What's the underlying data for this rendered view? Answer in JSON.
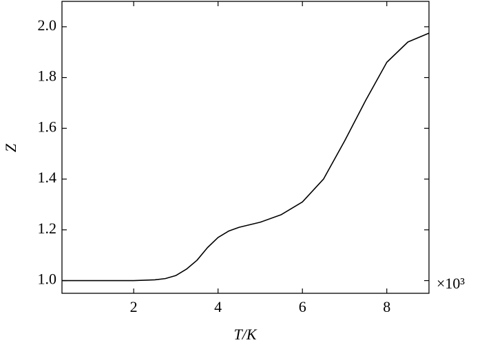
{
  "chart_data": {
    "type": "line",
    "x_label": "T/K",
    "y_label": "Z",
    "x_offset_label": "×10³",
    "x": [
      0.3,
      1,
      2,
      2.5,
      2.75,
      3,
      3.25,
      3.5,
      3.75,
      4,
      4.25,
      4.5,
      5,
      5.5,
      6,
      6.5,
      7,
      7.5,
      8,
      8.5,
      9
    ],
    "series": [
      {
        "color": "#000000",
        "values": [
          1.0,
          1.0,
          1.0,
          1.003,
          1.008,
          1.02,
          1.045,
          1.08,
          1.13,
          1.17,
          1.195,
          1.21,
          1.23,
          1.26,
          1.31,
          1.4,
          1.55,
          1.71,
          1.86,
          1.94,
          1.975
        ]
      }
    ],
    "xlim": [
      0.3,
      9
    ],
    "xticks": [
      2,
      4,
      6,
      8
    ],
    "ylim": [
      0.95,
      2.1
    ],
    "yticks": [
      {
        "value": 1,
        "label": "1.0"
      },
      1.2,
      1.4,
      1.6,
      1.8,
      {
        "value": 2,
        "label": "2.0"
      }
    ],
    "grid": false
  }
}
